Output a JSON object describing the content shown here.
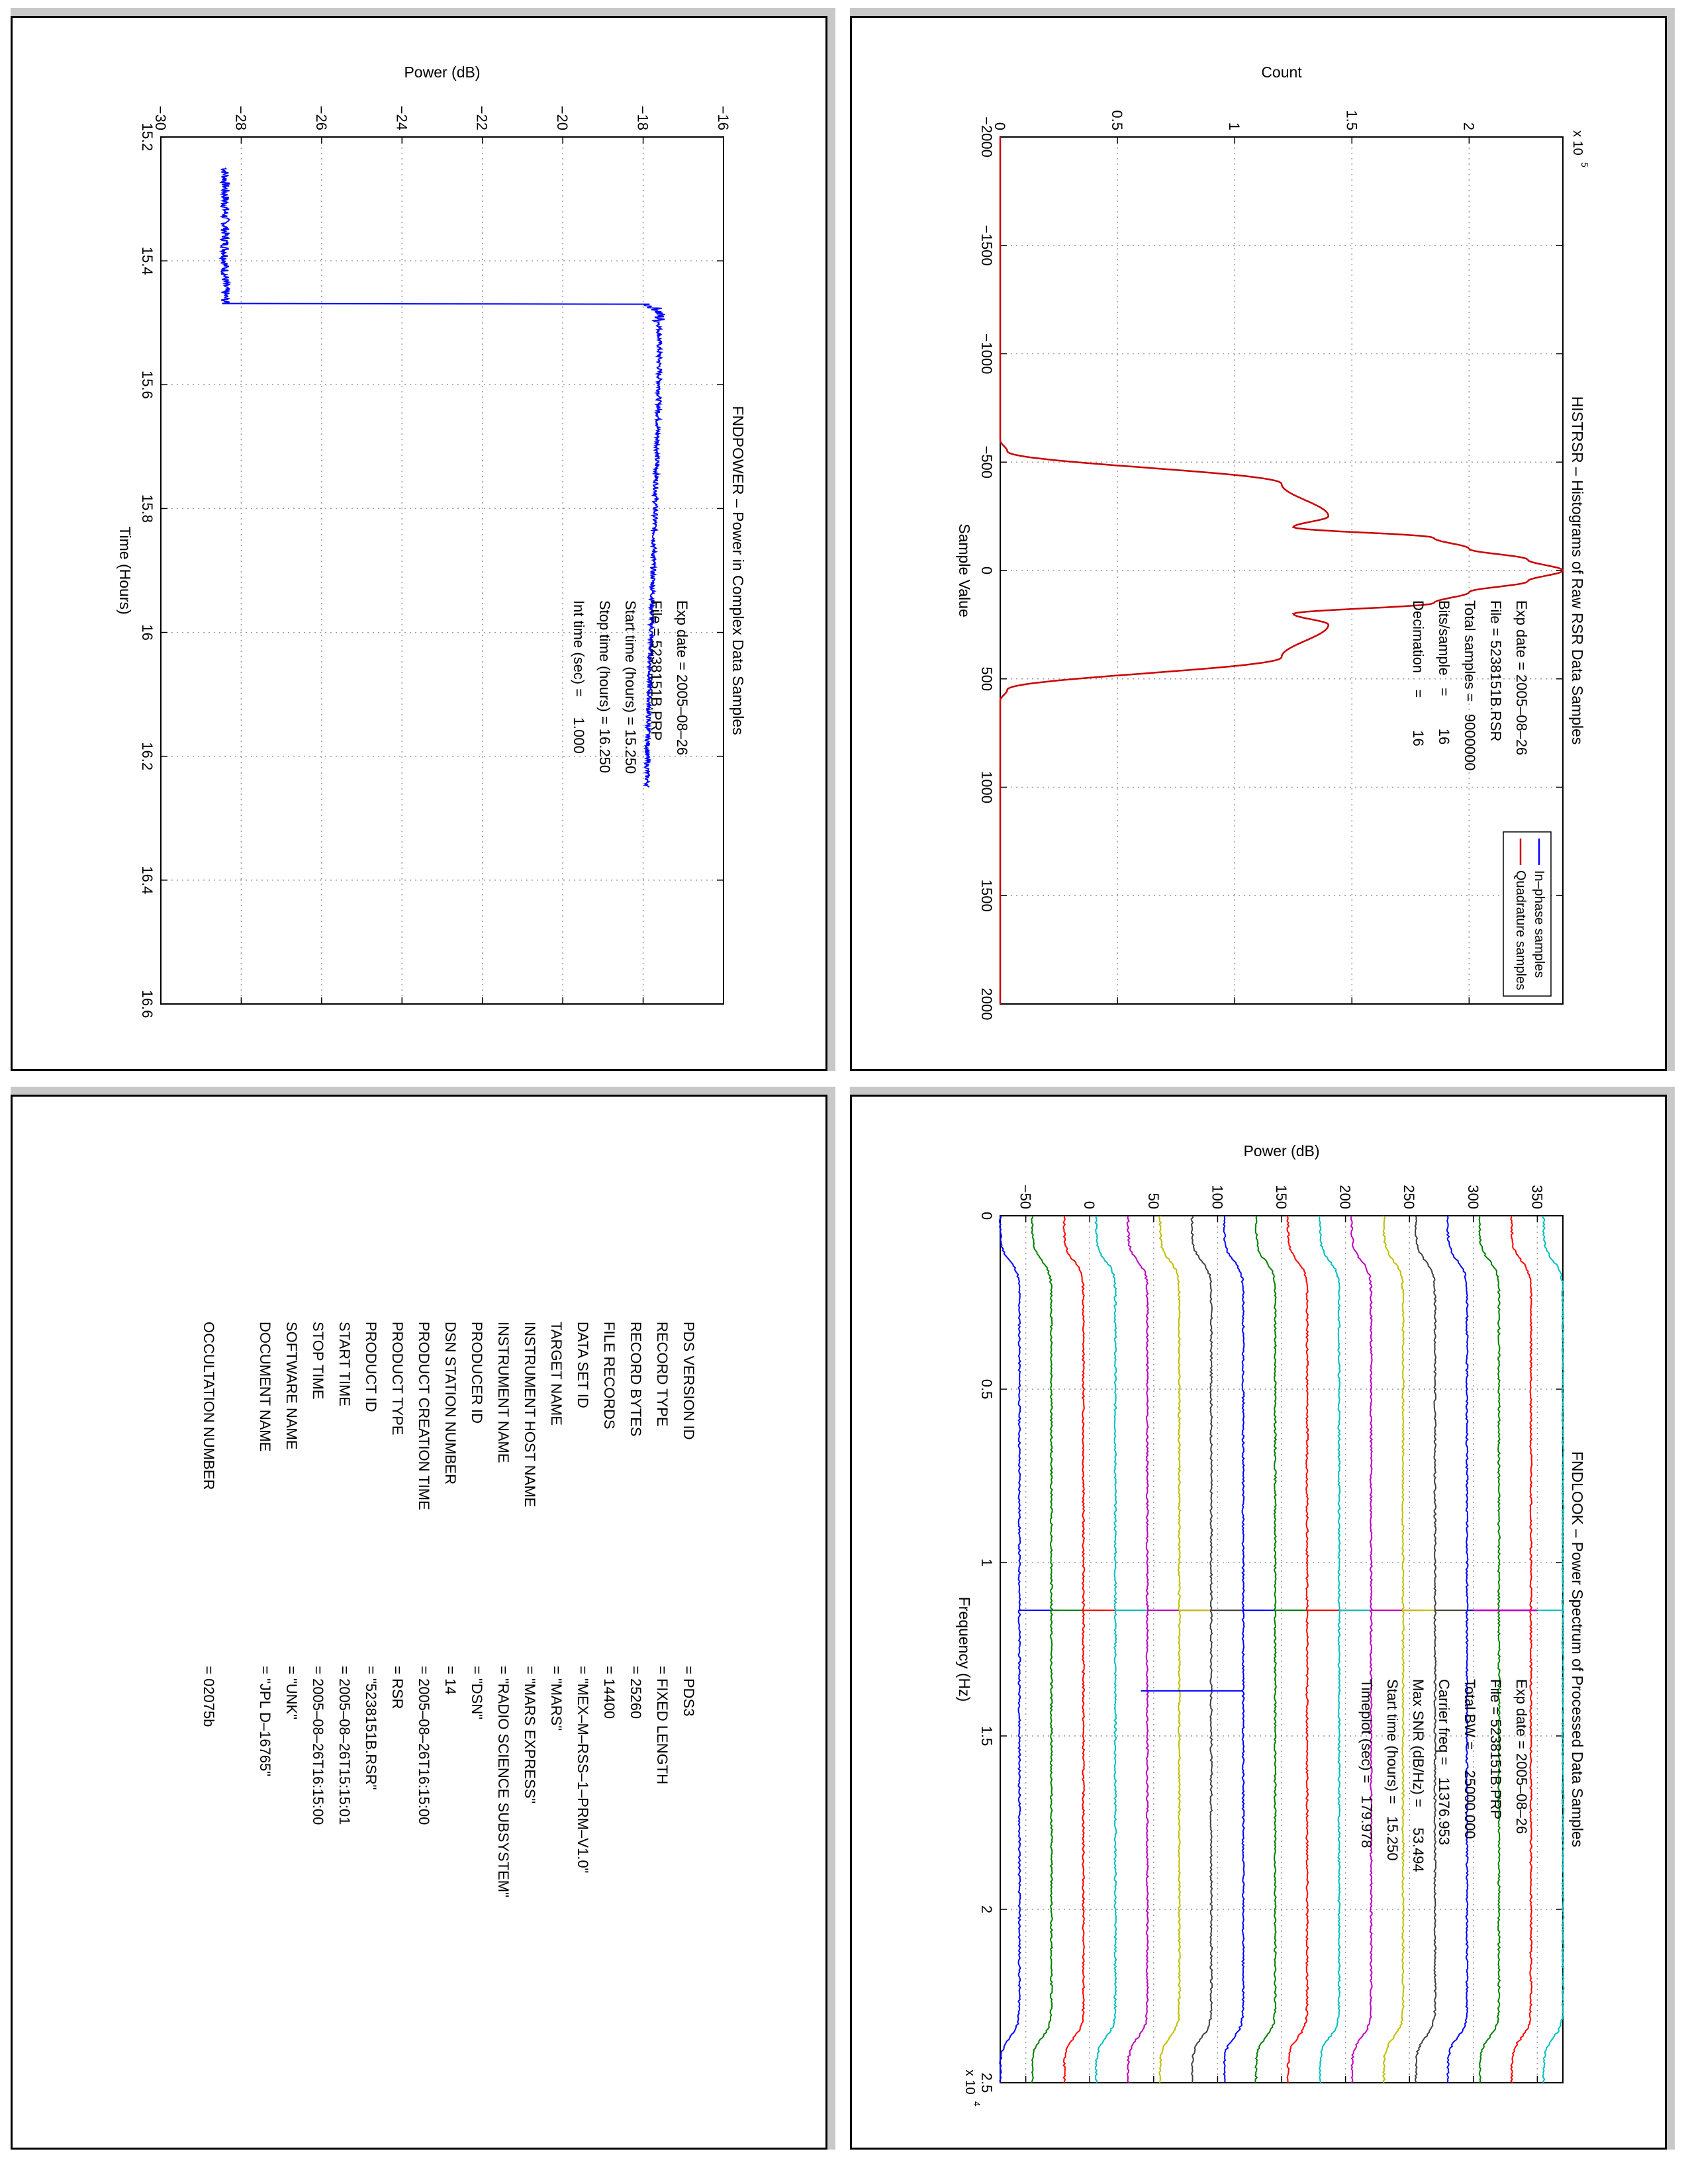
{
  "panels": {
    "fndpower": {
      "title": "FNDPOWER – Power in Complex Data Samples",
      "xlabel": "Time (Hours)",
      "ylabel": "Power (dB)",
      "annotations": [
        "Exp date = 2005–08–26",
        "File = 5238151B.PRP",
        "Start time (hours) = 15.250",
        "Stop time (hours) = 16.250",
        "Int time (sec) =     1.000"
      ]
    },
    "histrsr": {
      "title": "HISTRSR – Histograms of Raw RSR Data Samples",
      "xlabel": "Sample Value",
      "ylabel": "Count",
      "y_multiplier": "x 10",
      "y_multiplier_exp": "5",
      "legend": [
        "In–phase samples",
        "Quadrature samples"
      ],
      "annotations": [
        "Exp date = 2005–08–26",
        "File = 5238151B.RSR",
        "Total samples =   9000000",
        "Bits/sample   =        16",
        "Decimation    =        16"
      ]
    },
    "fndlook": {
      "title": "FNDLOOK – Power Spectrum of Processed Data Samples",
      "xlabel": "Frequency (Hz)",
      "ylabel": "Power (dB)",
      "x_multiplier": "x 10",
      "x_multiplier_exp": "4",
      "annotations": [
        "Exp date = 2005–08–26",
        "File = 5238151B.PRP",
        "Total BW =     25000.000",
        "Carrier freq =   11376.953",
        "Max SNR (dB/Hz) =     53.494",
        "Start time (hours) =   15.250",
        "Timeplot (sec) =   179.978"
      ]
    },
    "metadata": {
      "rows": [
        {
          "key": "PDS VERSION ID",
          "value": "= PDS3"
        },
        {
          "key": "RECORD TYPE",
          "value": "= FIXED LENGTH"
        },
        {
          "key": "RECORD BYTES",
          "value": "= 25260"
        },
        {
          "key": "FILE RECORDS",
          "value": "= 14400"
        },
        {
          "key": "DATA SET ID",
          "value": "= \"MEX–M–RSS–1–PRM–V1.0\""
        },
        {
          "key": "TARGET NAME",
          "value": "= \"MARS\""
        },
        {
          "key": "INSTRUMENT HOST NAME",
          "value": "= \"MARS EXPRESS\""
        },
        {
          "key": "INSTRUMENT NAME",
          "value": "= \"RADIO SCIENCE SUBSYSTEM\""
        },
        {
          "key": "PRODUCER ID",
          "value": "= \"DSN\""
        },
        {
          "key": "DSN STATION NUMBER",
          "value": "= 14"
        },
        {
          "key": "PRODUCT CREATION TIME",
          "value": "= 2005–08–26T16:15:00"
        },
        {
          "key": "PRODUCT TYPE",
          "value": "= RSR"
        },
        {
          "key": "PRODUCT ID",
          "value": "= \"5238151B.RSR\""
        },
        {
          "key": "START TIME",
          "value": "= 2005–08–26T15:15:01"
        },
        {
          "key": "STOP TIME",
          "value": "= 2005–08–26T16:15:00"
        },
        {
          "key": "SOFTWARE NAME",
          "value": "= \"UNK\""
        },
        {
          "key": "DOCUMENT NAME",
          "value": "= \"JPL D–16765\""
        },
        {
          "key": "OCCULTATION NUMBER",
          "value": "= 02075b"
        }
      ]
    }
  },
  "chart_data": [
    {
      "type": "line",
      "title": "FNDPOWER – Power in Complex Data Samples",
      "xlabel": "Time (Hours)",
      "ylabel": "Power (dB)",
      "xlim": [
        15.2,
        16.6
      ],
      "ylim": [
        -30,
        -16
      ],
      "xticks": [
        "15.2",
        "15.4",
        "15.6",
        "15.8",
        "16",
        "16.2",
        "16.4",
        "16.6"
      ],
      "yticks": [
        "−30",
        "−28",
        "−26",
        "−24",
        "−22",
        "−20",
        "−18",
        "−16"
      ],
      "grid": true,
      "series": [
        {
          "color": "#0000ff",
          "x": [
            15.25,
            15.3,
            15.35,
            15.4,
            15.45,
            15.4699,
            15.47,
            15.48,
            15.5,
            15.55,
            15.6,
            15.7,
            15.8,
            15.9,
            16.0,
            16.1,
            16.2,
            16.25
          ],
          "y": [
            -28.4,
            -28.4,
            -28.4,
            -28.4,
            -28.4,
            -28.4,
            -17.9,
            -17.6,
            -17.6,
            -17.6,
            -17.6,
            -17.65,
            -17.7,
            -17.75,
            -17.8,
            -17.85,
            -17.9,
            -17.9
          ]
        }
      ]
    },
    {
      "type": "line",
      "title": "HISTRSR – Histograms of Raw RSR Data Samples",
      "xlabel": "Sample Value",
      "ylabel": "Count",
      "xlim": [
        -2000,
        2000
      ],
      "ylim": [
        0,
        240000
      ],
      "xticks": [
        "−2000",
        "−1500",
        "−1000",
        "−500",
        "0",
        "500",
        "1000",
        "1500",
        "2000"
      ],
      "yticks": [
        "0",
        "0.5",
        "1",
        "1.5",
        "2"
      ],
      "y_multiplier": "x 10^5",
      "grid": true,
      "legend_position": "top-right",
      "series": [
        {
          "name": "In–phase samples",
          "color": "#0000ff",
          "x": [
            -2000,
            -600,
            -550,
            -400,
            -250,
            -200,
            -150,
            -100,
            -50,
            0,
            50,
            100,
            150,
            200,
            250,
            400,
            550,
            600,
            2000
          ],
          "y": [
            0,
            0,
            3000,
            120000,
            140000,
            125000,
            185000,
            200000,
            225000,
            240000,
            225000,
            200000,
            185000,
            125000,
            140000,
            120000,
            3000,
            0,
            0
          ]
        },
        {
          "name": "Quadrature samples",
          "color": "#cc0000",
          "x": [
            -2000,
            -600,
            -550,
            -400,
            -250,
            -200,
            -150,
            -100,
            -50,
            0,
            50,
            100,
            150,
            200,
            250,
            400,
            550,
            600,
            2000
          ],
          "y": [
            0,
            0,
            3000,
            120000,
            140000,
            125000,
            185000,
            200000,
            225000,
            240000,
            225000,
            200000,
            185000,
            125000,
            140000,
            120000,
            3000,
            0,
            0
          ]
        }
      ]
    },
    {
      "type": "line",
      "title": "FNDLOOK – Power Spectrum of Processed Data Samples",
      "xlabel": "Frequency (Hz)",
      "ylabel": "Power (dB)",
      "xlim": [
        0,
        25000
      ],
      "ylim": [
        -70,
        370
      ],
      "xticks": [
        "0",
        "0.5",
        "1",
        "1.5",
        "2",
        "2.5"
      ],
      "yticks": [
        "−50",
        "0",
        "50",
        "100",
        "150",
        "200",
        "250",
        "300",
        "350"
      ],
      "x_multiplier": "x 10^4",
      "grid": true,
      "series": [
        {
          "color": "#0000ff",
          "baseline": -70,
          "plateau": -55
        },
        {
          "color": "#008000",
          "baseline": -45,
          "plateau": -30
        },
        {
          "color": "#ff0000",
          "baseline": -20,
          "plateau": -5
        },
        {
          "color": "#00bfbf",
          "baseline": 5,
          "plateau": 20
        },
        {
          "color": "#bf00bf",
          "baseline": 30,
          "plateau": 45
        },
        {
          "color": "#bfbf00",
          "baseline": 55,
          "plateau": 70
        },
        {
          "color": "#404040",
          "baseline": 80,
          "plateau": 95
        },
        {
          "color": "#0000ff",
          "baseline": 105,
          "plateau": 120
        },
        {
          "color": "#008000",
          "baseline": 130,
          "plateau": 145
        },
        {
          "color": "#ff0000",
          "baseline": 155,
          "plateau": 170
        },
        {
          "color": "#00bfbf",
          "baseline": 180,
          "plateau": 195
        },
        {
          "color": "#bf00bf",
          "baseline": 205,
          "plateau": 220
        },
        {
          "color": "#bfbf00",
          "baseline": 230,
          "plateau": 245
        },
        {
          "color": "#404040",
          "baseline": 255,
          "plateau": 270
        },
        {
          "color": "#0000ff",
          "baseline": 280,
          "plateau": 295
        },
        {
          "color": "#008000",
          "baseline": 305,
          "plateau": 320
        },
        {
          "color": "#ff0000",
          "baseline": 330,
          "plateau": 345
        },
        {
          "color": "#00bfbf",
          "baseline": 355,
          "plateau": 370
        }
      ],
      "peaks": [
        {
          "freq": 11376.953,
          "power": 350
        },
        {
          "freq": 13700,
          "power": 120
        }
      ]
    }
  ]
}
